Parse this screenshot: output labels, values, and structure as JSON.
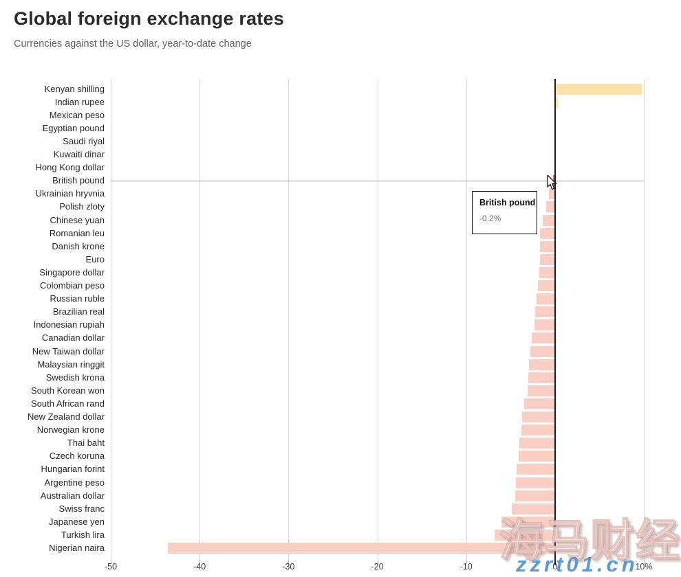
{
  "header": {
    "title": "Global foreign exchange rates",
    "subtitle": "Currencies against the US dollar, year-to-date change"
  },
  "chart_data": {
    "type": "bar",
    "orientation": "horizontal",
    "unit": "%",
    "xlim": [
      -50,
      10
    ],
    "grid": true,
    "tick_values": [
      -50,
      -40,
      -30,
      -20,
      -10,
      0,
      10
    ],
    "tick_labels": [
      "-50",
      "-40",
      "-30",
      "-20",
      "-10",
      "0",
      "10%"
    ],
    "categories": [
      "Kenyan shilling",
      "Indian rupee",
      "Mexican peso",
      "Egyptian pound",
      "Saudi riyal",
      "Kuwaiti dinar",
      "Hong Kong dollar",
      "British pound",
      "Ukrainian hryvnia",
      "Polish zloty",
      "Chinese yuan",
      "Romanian leu",
      "Danish krone",
      "Euro",
      "Singapore dollar",
      "Colombian peso",
      "Russian ruble",
      "Brazilian real",
      "Indonesian rupiah",
      "Canadian dollar",
      "New Taiwan dollar",
      "Malaysian ringgit",
      "Swedish krona",
      "South Korean won",
      "South African rand",
      "New Zealand dollar",
      "Norwegian krone",
      "Thai baht",
      "Czech koruna",
      "Hungarian forint",
      "Argentine peso",
      "Australian dollar",
      "Swiss franc",
      "Japanese yen",
      "Turkish lira",
      "Nigerian naira"
    ],
    "values": [
      9.8,
      0.3,
      0.1,
      0.0,
      0.0,
      0.0,
      -0.1,
      -0.2,
      -0.7,
      -1.0,
      -1.4,
      -1.7,
      -1.7,
      -1.7,
      -1.8,
      -1.9,
      -2.1,
      -2.2,
      -2.3,
      -2.6,
      -2.8,
      -2.9,
      -3.0,
      -3.1,
      -3.5,
      -3.7,
      -3.8,
      -4.0,
      -4.1,
      -4.3,
      -4.4,
      -4.5,
      -4.9,
      -6.0,
      -6.8,
      -43.6
    ],
    "highlight_index": 7,
    "colors": {
      "positive": "#fce1a9",
      "negative": "#f8cfc2",
      "highlight": "#e0694e",
      "grid": "#d9d9d9",
      "zero_axis": "#1b1b1b",
      "hover_line": "#979797"
    }
  },
  "tooltip": {
    "title": "British pound",
    "value": "-0.2%"
  },
  "watermark": {
    "cn": "海马财经",
    "site": "zzrt01.cn"
  }
}
